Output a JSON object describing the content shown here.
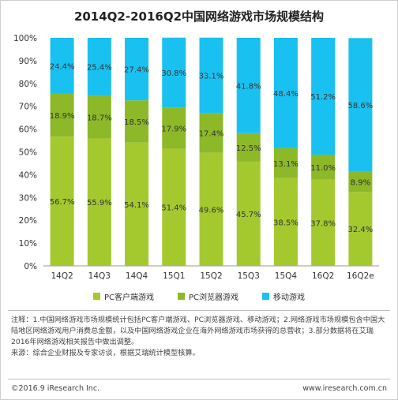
{
  "title": "2014Q2-2016Q2中国网络游戏市场规模结构",
  "chart_data": {
    "type": "bar",
    "stacked": true,
    "categories": [
      "14Q2",
      "14Q3",
      "14Q4",
      "15Q1",
      "15Q2",
      "15Q3",
      "15Q4",
      "16Q2",
      "16Q2e"
    ],
    "series": [
      {
        "name": "PC客户端游戏",
        "color": "#a4c92f",
        "values": [
          56.7,
          55.9,
          54.1,
          51.4,
          49.6,
          45.7,
          38.5,
          37.8,
          32.4
        ]
      },
      {
        "name": "PC浏览器游戏",
        "color": "#8db828",
        "values": [
          18.9,
          18.7,
          18.5,
          17.9,
          17.4,
          12.5,
          13.1,
          11.0,
          8.9
        ]
      },
      {
        "name": "移动游戏",
        "color": "#19c1f0",
        "values": [
          24.4,
          25.4,
          27.4,
          30.8,
          33.1,
          41.8,
          48.4,
          51.2,
          58.6
        ]
      }
    ],
    "value_suffix": "%",
    "yticks": [
      "0%",
      "10%",
      "20%",
      "30%",
      "40%",
      "50%",
      "60%",
      "70%",
      "80%",
      "90%",
      "100%"
    ],
    "ylim": [
      0,
      100
    ],
    "legend_position": "bottom"
  },
  "notes": {
    "line1": "注释：1.中国网络游戏市场规模统计包括PC客户端游戏、PC浏览器游戏、移动游戏；2.网络游戏市场规模包含中国大陆地区网络游戏用户消费总金额，以及中国网络游戏企业在海外网络游戏市场获得的总营收；3.部分数据将在艾瑞2016年网络游戏相关报告中做出调整。",
    "line2": "来源：综合企业财报及专家访谈，根据艾瑞统计模型核算。"
  },
  "footer": {
    "copyright": "©2016.9 iResearch Inc.",
    "website": "www.iresearch.com.cn"
  }
}
